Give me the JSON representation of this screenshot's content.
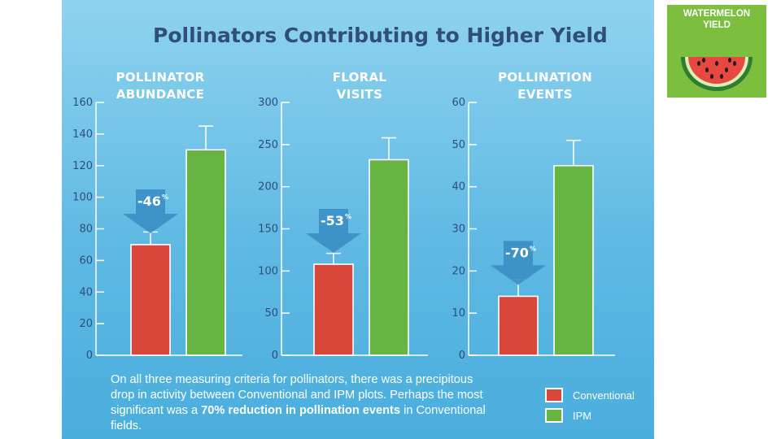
{
  "title": "Pollinators Contributing to Higher Yield",
  "badge": {
    "line1": "WATERMELON",
    "line2": "YIELD",
    "icon": "watermelon-slice-icon"
  },
  "colors": {
    "conventional": "#d9473a",
    "ipm": "#67b442",
    "arrow": "#3a8fc4",
    "title": "#2f4e7a"
  },
  "summary": {
    "part1": "On all three measuring criteria for pollinators, there was a precipitous drop in activity between Conventional and IPM plots. Perhaps the most significant was a ",
    "bold": "70% reduction in pollination events",
    "part2": " in Conventional fields."
  },
  "legend": [
    {
      "label": "Conventional"
    },
    {
      "label": "IPM"
    }
  ],
  "chart_data": [
    {
      "type": "bar",
      "title_lines": [
        "POLLINATOR",
        "ABUNDANCE"
      ],
      "categories": [
        "Conventional",
        "IPM"
      ],
      "values": [
        70,
        130
      ],
      "error_upper": [
        78,
        145
      ],
      "ylim": [
        0,
        160
      ],
      "yticks": [
        0,
        20,
        40,
        60,
        80,
        100,
        120,
        140,
        160
      ],
      "change": {
        "value": "-46",
        "unit": "%"
      }
    },
    {
      "type": "bar",
      "title_lines": [
        "FLORAL",
        "VISITS"
      ],
      "categories": [
        "Conventional",
        "IPM"
      ],
      "values": [
        108,
        232
      ],
      "error_upper": [
        121,
        258
      ],
      "ylim": [
        0,
        300
      ],
      "yticks": [
        0,
        50,
        100,
        150,
        200,
        250,
        300
      ],
      "change": {
        "value": "-53",
        "unit": "%"
      }
    },
    {
      "type": "bar",
      "title_lines": [
        "POLLINATION",
        "EVENTS"
      ],
      "categories": [
        "Conventional",
        "IPM"
      ],
      "values": [
        14,
        45
      ],
      "error_upper": [
        18,
        51
      ],
      "ylim": [
        0,
        60
      ],
      "yticks": [
        0,
        10,
        20,
        30,
        40,
        50,
        60
      ],
      "change": {
        "value": "-70",
        "unit": "%"
      }
    }
  ]
}
